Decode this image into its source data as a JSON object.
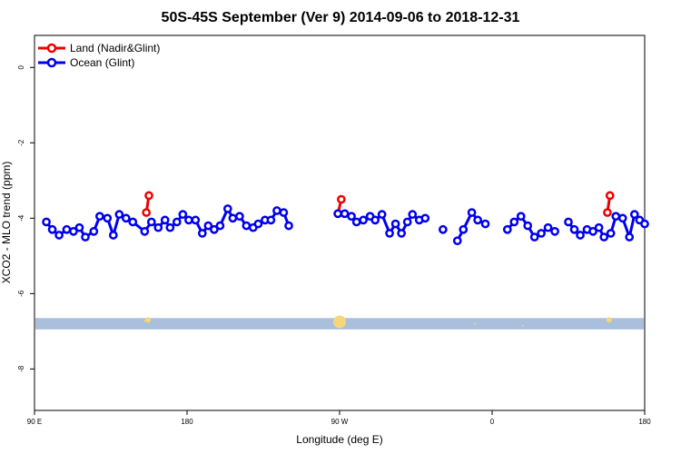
{
  "chart_data": {
    "type": "line",
    "title": "50S-45S September (Ver 9)   2014-09-06 to 2018-12-31",
    "xlabel": "Longitude (deg E)",
    "ylabel": "XCO2 - MLO trend (ppm)",
    "xlim": [
      90,
      450
    ],
    "ylim": [
      -9.1,
      0.85
    ],
    "x_ticks": [
      {
        "value": 90,
        "label": "90 E"
      },
      {
        "value": 180,
        "label": "180"
      },
      {
        "value": 270,
        "label": "90 W"
      },
      {
        "value": 360,
        "label": "0"
      },
      {
        "value": 450,
        "label": "180"
      }
    ],
    "y_ticks": [
      0,
      -2,
      -4,
      -6,
      -8
    ],
    "grid": false,
    "legend_position": "top-left",
    "series": [
      {
        "name": "Land (Nadir&Glint)",
        "color": "#ee0000",
        "segments": [
          [
            [
              156,
              -3.85
            ],
            [
              157.5,
              -3.4
            ]
          ],
          [
            [
              269,
              -3.88
            ],
            [
              271,
              -3.5
            ]
          ],
          [
            [
              428,
              -3.85
            ],
            [
              429.5,
              -3.4
            ]
          ]
        ]
      },
      {
        "name": "Ocean (Glint)",
        "color": "#0000ee",
        "segments": [
          [
            [
              97,
              -4.1
            ],
            [
              100.5,
              -4.3
            ],
            [
              104.5,
              -4.45
            ],
            [
              109,
              -4.3
            ],
            [
              113,
              -4.35
            ],
            [
              116.5,
              -4.25
            ],
            [
              120,
              -4.5
            ],
            [
              125,
              -4.35
            ],
            [
              128.5,
              -3.95
            ],
            [
              133,
              -4.0
            ],
            [
              136.5,
              -4.45
            ],
            [
              140,
              -3.9
            ],
            [
              144,
              -4.0
            ],
            [
              148,
              -4.1
            ],
            [
              155,
              -4.35
            ],
            [
              159,
              -4.1
            ],
            [
              163,
              -4.25
            ],
            [
              167,
              -4.05
            ],
            [
              170,
              -4.25
            ],
            [
              174,
              -4.1
            ],
            [
              177.5,
              -3.9
            ],
            [
              181,
              -4.05
            ],
            [
              185,
              -4.05
            ],
            [
              189,
              -4.4
            ],
            [
              192.5,
              -4.2
            ],
            [
              196,
              -4.3
            ],
            [
              199.5,
              -4.2
            ],
            [
              204,
              -3.75
            ],
            [
              207,
              -4.0
            ],
            [
              211,
              -3.95
            ],
            [
              215,
              -4.2
            ],
            [
              219,
              -4.25
            ],
            [
              222,
              -4.15
            ],
            [
              226,
              -4.05
            ],
            [
              229.5,
              -4.05
            ],
            [
              233,
              -3.8
            ],
            [
              237,
              -3.85
            ],
            [
              240,
              -4.2
            ]
          ],
          [
            [
              269,
              -3.88
            ],
            [
              273,
              -3.88
            ],
            [
              277,
              -3.95
            ],
            [
              280,
              -4.1
            ],
            [
              284,
              -4.05
            ],
            [
              288,
              -3.95
            ],
            [
              291,
              -4.05
            ],
            [
              295,
              -3.9
            ],
            [
              299.5,
              -4.4
            ],
            [
              303,
              -4.15
            ],
            [
              306.5,
              -4.4
            ],
            [
              310,
              -4.1
            ],
            [
              313,
              -3.9
            ],
            [
              317,
              -4.05
            ],
            [
              320.5,
              -4.0
            ]
          ],
          [
            [
              331,
              -4.3
            ]
          ],
          [
            [
              339.5,
              -4.6
            ],
            [
              343,
              -4.3
            ],
            [
              348,
              -3.85
            ],
            [
              351.5,
              -4.05
            ],
            [
              356,
              -4.15
            ]
          ],
          [
            [
              369,
              -4.3
            ],
            [
              373,
              -4.1
            ],
            [
              377,
              -3.95
            ],
            [
              381,
              -4.2
            ],
            [
              385,
              -4.5
            ],
            [
              389,
              -4.4
            ],
            [
              393,
              -4.25
            ],
            [
              397,
              -4.35
            ]
          ],
          [
            [
              405,
              -4.1
            ],
            [
              408.5,
              -4.3
            ],
            [
              412,
              -4.45
            ],
            [
              416,
              -4.3
            ],
            [
              419.5,
              -4.35
            ],
            [
              423,
              -4.25
            ],
            [
              426,
              -4.5
            ],
            [
              430,
              -4.4
            ],
            [
              433,
              -3.95
            ],
            [
              437,
              -4.0
            ],
            [
              441,
              -4.5
            ],
            [
              444,
              -3.9
            ],
            [
              447,
              -4.05
            ],
            [
              450,
              -4.15
            ]
          ]
        ]
      }
    ],
    "band": {
      "y_from": -6.95,
      "y_to": -6.65,
      "color": "#a9bfdc"
    },
    "band_markers": [
      {
        "x": 157,
        "y": -6.7,
        "size": 3
      },
      {
        "x": 270,
        "y": -6.75,
        "size": 7
      },
      {
        "x": 350,
        "y": -6.8,
        "size": 1
      },
      {
        "x": 429,
        "y": -6.7,
        "size": 3
      },
      {
        "x": 155,
        "y": -6.72,
        "size": 1
      },
      {
        "x": 378,
        "y": -6.85,
        "size": 1
      }
    ],
    "band_marker_color": "#f5d77a"
  }
}
